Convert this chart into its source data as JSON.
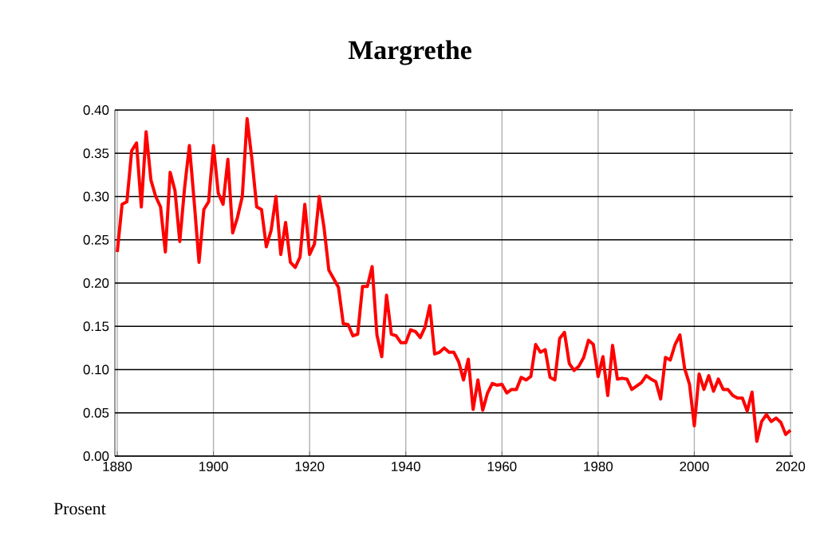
{
  "chart_data": {
    "type": "line",
    "title": "Margrethe",
    "annotations": [
      "Prosent"
    ],
    "x": [
      1880,
      1881,
      1882,
      1883,
      1884,
      1885,
      1886,
      1887,
      1888,
      1889,
      1890,
      1891,
      1892,
      1893,
      1894,
      1895,
      1896,
      1897,
      1898,
      1899,
      1900,
      1901,
      1902,
      1903,
      1904,
      1905,
      1906,
      1907,
      1908,
      1909,
      1910,
      1911,
      1912,
      1913,
      1914,
      1915,
      1916,
      1917,
      1918,
      1919,
      1920,
      1921,
      1922,
      1923,
      1924,
      1925,
      1926,
      1927,
      1928,
      1929,
      1930,
      1931,
      1932,
      1933,
      1934,
      1935,
      1936,
      1937,
      1938,
      1939,
      1940,
      1941,
      1942,
      1943,
      1944,
      1945,
      1946,
      1947,
      1948,
      1949,
      1950,
      1951,
      1952,
      1953,
      1954,
      1955,
      1956,
      1957,
      1958,
      1959,
      1960,
      1961,
      1962,
      1963,
      1964,
      1965,
      1966,
      1967,
      1968,
      1969,
      1970,
      1971,
      1972,
      1973,
      1974,
      1975,
      1976,
      1977,
      1978,
      1979,
      1980,
      1981,
      1982,
      1983,
      1984,
      1985,
      1986,
      1987,
      1988,
      1989,
      1990,
      1991,
      1992,
      1993,
      1994,
      1995,
      1996,
      1997,
      1998,
      1999,
      2000,
      2001,
      2002,
      2003,
      2004,
      2005,
      2006,
      2007,
      2008,
      2009,
      2010,
      2011,
      2012,
      2013,
      2014,
      2015,
      2016,
      2017,
      2018,
      2019,
      2020
    ],
    "series": [
      {
        "color": "#ff0000",
        "values": [
          0.236,
          0.291,
          0.294,
          0.353,
          0.362,
          0.288,
          0.375,
          0.319,
          0.3,
          0.288,
          0.236,
          0.328,
          0.307,
          0.248,
          0.31,
          0.359,
          0.294,
          0.224,
          0.285,
          0.294,
          0.359,
          0.304,
          0.291,
          0.343,
          0.258,
          0.276,
          0.3,
          0.39,
          0.343,
          0.288,
          0.285,
          0.242,
          0.261,
          0.3,
          0.233,
          0.27,
          0.224,
          0.218,
          0.23,
          0.291,
          0.233,
          0.245,
          0.3,
          0.264,
          0.215,
          0.205,
          0.195,
          0.153,
          0.152,
          0.139,
          0.141,
          0.196,
          0.196,
          0.219,
          0.14,
          0.115,
          0.186,
          0.141,
          0.139,
          0.131,
          0.131,
          0.146,
          0.144,
          0.137,
          0.149,
          0.174,
          0.118,
          0.12,
          0.125,
          0.12,
          0.12,
          0.109,
          0.088,
          0.112,
          0.054,
          0.088,
          0.053,
          0.073,
          0.084,
          0.082,
          0.083,
          0.073,
          0.077,
          0.077,
          0.091,
          0.088,
          0.092,
          0.129,
          0.12,
          0.123,
          0.091,
          0.088,
          0.136,
          0.143,
          0.107,
          0.099,
          0.104,
          0.114,
          0.134,
          0.129,
          0.092,
          0.115,
          0.07,
          0.128,
          0.089,
          0.09,
          0.089,
          0.077,
          0.081,
          0.085,
          0.093,
          0.089,
          0.086,
          0.066,
          0.114,
          0.111,
          0.129,
          0.14,
          0.101,
          0.083,
          0.035,
          0.095,
          0.077,
          0.093,
          0.075,
          0.089,
          0.077,
          0.077,
          0.07,
          0.067,
          0.067,
          0.052,
          0.074,
          0.017,
          0.04,
          0.048,
          0.04,
          0.044,
          0.039,
          0.025,
          0.03
        ]
      }
    ],
    "xlim": [
      1879.5,
      2020.5
    ],
    "ylim": [
      0,
      0.4
    ],
    "xticks": [
      1880,
      1900,
      1920,
      1940,
      1960,
      1980,
      2000,
      2020
    ],
    "yticks": [
      {
        "value": 0,
        "label": "0.00"
      },
      {
        "value": 0.05,
        "label": "0.05"
      },
      {
        "value": 0.1,
        "label": "0.10"
      },
      {
        "value": 0.15,
        "label": "0.15"
      },
      {
        "value": 0.2,
        "label": "0.20"
      },
      {
        "value": 0.25,
        "label": "0.25"
      },
      {
        "value": 0.3,
        "label": "0.30"
      },
      {
        "value": 0.35,
        "label": "0.35"
      },
      {
        "value": 0.4,
        "label": "0.40"
      }
    ],
    "grid": true,
    "marker": "none",
    "line_style": "solid"
  }
}
